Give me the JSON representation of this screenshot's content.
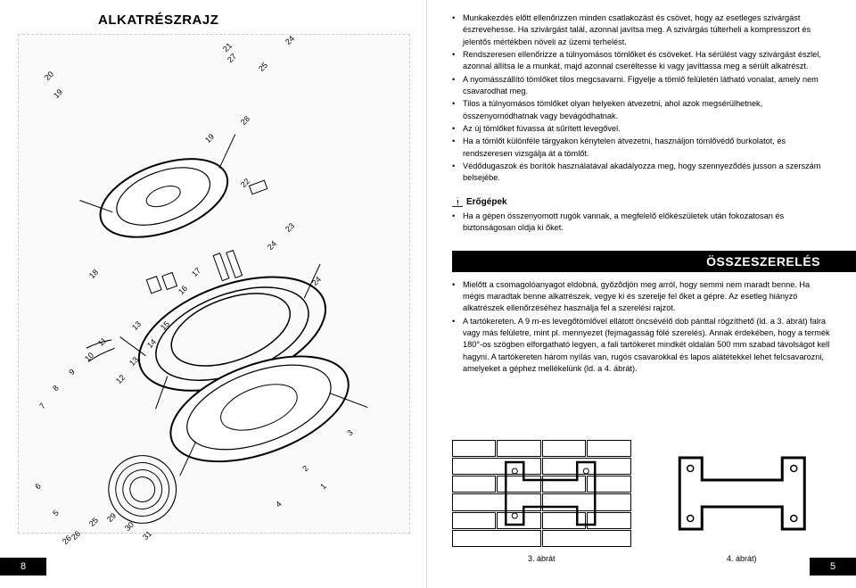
{
  "left": {
    "title": "ALKATRÉSZRAJZ",
    "page_num": "8",
    "parts": [
      "1",
      "2",
      "3",
      "4",
      "5",
      "6",
      "7",
      "8",
      "9",
      "10",
      "11",
      "12",
      "13",
      "13",
      "14",
      "15",
      "16",
      "17",
      "18",
      "19",
      "19",
      "20",
      "21",
      "22",
      "23",
      "24",
      "24",
      "24",
      "25",
      "25",
      "26",
      "26",
      "27",
      "28",
      "29",
      "30",
      "31"
    ]
  },
  "right": {
    "page_num": "5",
    "bullets1": [
      "Munkakezdés előtt ellenőrizzen minden csatlakozást és csövet, hogy az esetleges szivárgást észrevehesse. Ha szivárgást talál, azonnal javítsa meg. A szivárgás túlterheli a kompresszort és jelentős mértékben növeli az üzemi terhelést.",
      "Rendszeresen ellenőrizze a túlnyomásos tömlőket és csöveket. Ha sérülést vagy szivárgást észlel, azonnal állítsa le a munkát, majd azonnal cseréltesse ki vagy javíttassa meg a sérült alkatrészt.",
      "A nyomásszállító tömlőket tilos megcsavarni. Figyelje a tömlő felületén látható vonalat, amely nem csavarodhat meg.",
      "Tilos a túlnyomásos tömlőket olyan helyeken átvezetni, ahol azok megsérülhetnek, összenyomódhatnak vagy bevágódhatnak.",
      "Az új tömlőket fúvassa át sűrített levegővel.",
      "Ha a tömlőt különféle tárgyakon kénytelen átvezetni, használjon tömlővédő burkolatot, és rendszeresen vizsgálja át a tömlőt.",
      "Védődugaszok és borítók használatával akadályozza meg, hogy szennyeződés jusson a szerszám belsejébe."
    ],
    "section1_title": "Erőgépek",
    "bullets2": [
      "Ha a gépen összenyomott rugók vannak, a megfelelő előkészületek után fokozatosan és biztonságosan oldja ki őket."
    ],
    "section_bar": "ÖSSZESZERELÉS",
    "bullets3": [
      "Mielőtt a csomagolóanyagot eldobná, győződjön meg arról, hogy semmi nem maradt benne. Ha mégis maradtak benne alkatrészek, vegye ki és szerelje fel őket a gépre. Az esetleg hiányzó alkatrészek ellenőrzéséhez használja fel a szerelési rajzot.",
      "A tartókereten. A 9 m-es levegőtömlővel ellátott öncsévélő dob pánttal rögzíthető (ld. a 3. ábrát) falra vagy más felületre, mint pl. mennyezet (fejmagasság fölé szerelés). Annak érdekében, hogy a termék 180°-os szögben elforgatható legyen, a fali tartókeret mindkét oldalán 500 mm szabad távolságot kell hagyni. A tartókereten három nyílás van, rugós csavarokkal és lapos alátétekkel lehet felcsavarozni, amelyeket a géphez mellékelünk (ld. a 4. ábrát)."
    ],
    "fig3": "3. ábrát",
    "fig4": "4. ábrát)"
  },
  "style": {
    "text_color": "#000000",
    "title_fontsize": 15,
    "body_fontsize": 9.2,
    "bar_bg": "#000000",
    "bar_fg": "#ffffff"
  }
}
